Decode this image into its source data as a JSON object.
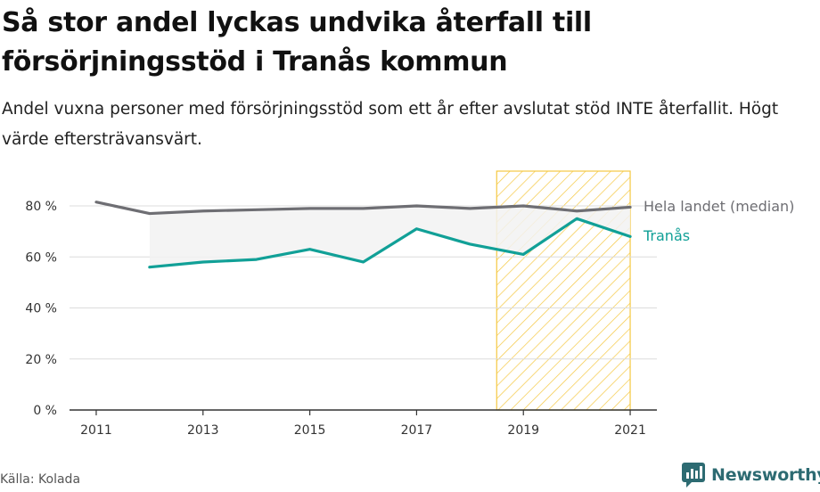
{
  "chart_data": {
    "type": "line",
    "title": "Så stor andel lyckas undvika återfall till försörjningsstöd i Tranås kommun",
    "subtitle": "Andel vuxna personer med försörjningsstöd som ett år efter avslutat stöd INTE återfallit. Högt värde eftersträvansvärt.",
    "x": [
      2011,
      2012,
      2013,
      2014,
      2015,
      2016,
      2017,
      2018,
      2019,
      2020,
      2021
    ],
    "x_ticks": [
      "2011",
      "2013",
      "2015",
      "2017",
      "2019",
      "2021"
    ],
    "y_ticks": [
      "0 %",
      "20 %",
      "40 %",
      "60 %",
      "80 %"
    ],
    "ylim": [
      0,
      80
    ],
    "grid": true,
    "series": [
      {
        "name": "Hela landet (median)",
        "color": "#6e6e73",
        "values": [
          81.5,
          77,
          78,
          78.5,
          79,
          79,
          80,
          79,
          80,
          78,
          79.5
        ]
      },
      {
        "name": "Tranås",
        "color": "#11a097",
        "values": [
          null,
          56,
          58,
          59,
          63,
          58,
          71,
          65,
          61,
          75,
          68
        ]
      }
    ],
    "highlight_range": [
      2018.5,
      2021
    ],
    "highlight_color": "#f5c842",
    "band_fill": "#f2f2f2"
  },
  "source": "Källa: Kolada",
  "brand": "Newsworthy",
  "brand_color": "#2d6b72"
}
